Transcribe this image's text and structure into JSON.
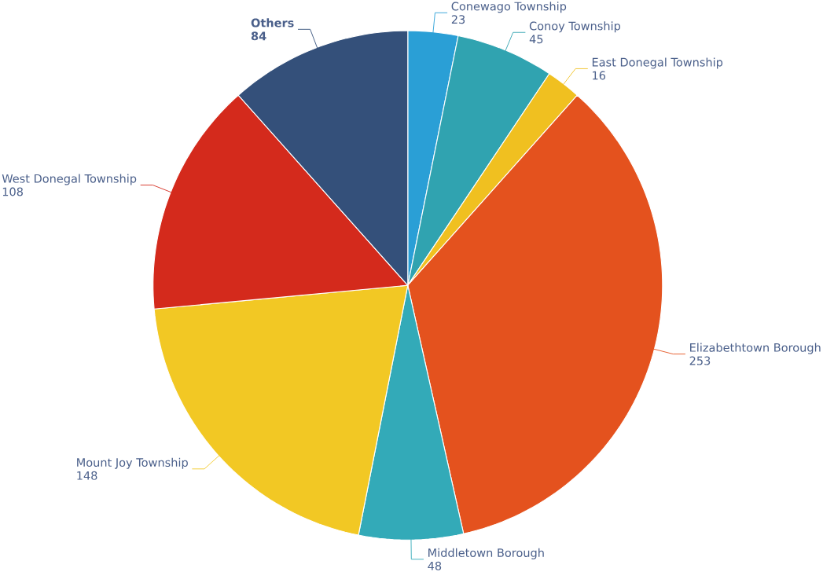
{
  "chart_data": {
    "type": "pie",
    "categories": [
      "Conewago Township",
      "Conoy Township",
      "East Donegal Township",
      "Elizabethtown Borough",
      "Middletown Borough",
      "Mount Joy Township",
      "West Donegal Township",
      "Others"
    ],
    "values": [
      23,
      45,
      16,
      253,
      48,
      148,
      108,
      84
    ],
    "colors": [
      "#2a9fd6",
      "#30a3b0",
      "#f0c020",
      "#e4521e",
      "#33aab8",
      "#f2c824",
      "#d42a1c",
      "#34507a"
    ],
    "data_labels": true
  }
}
